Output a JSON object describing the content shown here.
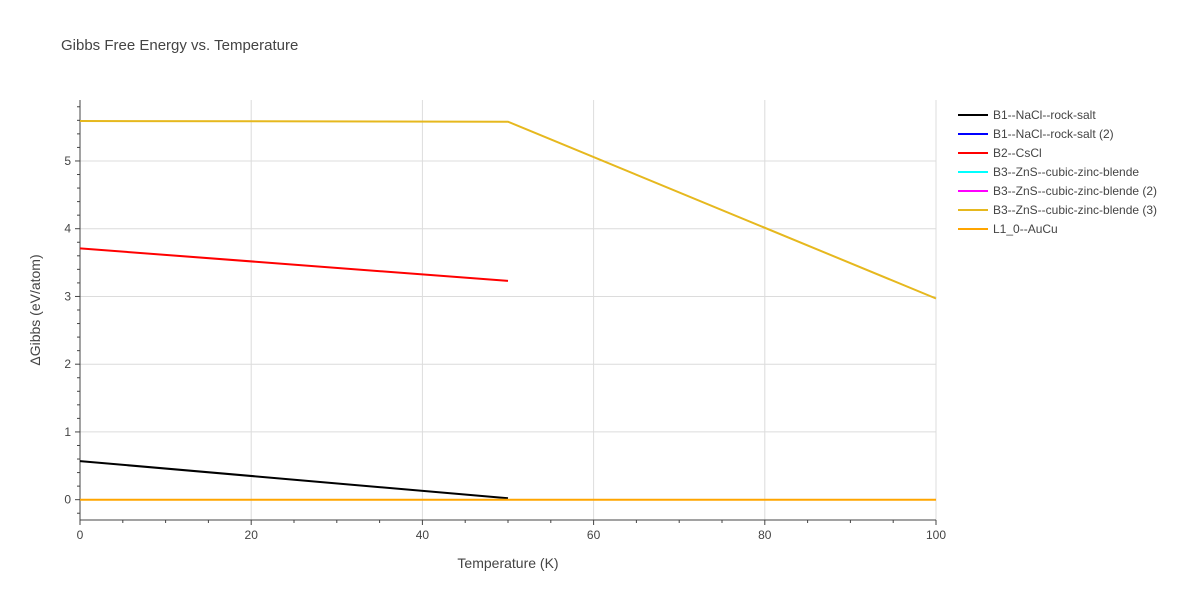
{
  "chart_data": {
    "type": "line",
    "title": "Gibbs Free Energy vs. Temperature",
    "xlabel": "Temperature (K)",
    "ylabel": "ΔGibbs (eV/atom)",
    "xlim": [
      0,
      100
    ],
    "ylim": [
      -0.3,
      5.9
    ],
    "xticks": [
      0,
      20,
      40,
      60,
      80,
      100
    ],
    "yticks": [
      0,
      1,
      2,
      3,
      4,
      5
    ],
    "grid": true,
    "legend_position": "right",
    "series": [
      {
        "name": "B1--NaCl--rock-salt",
        "color": "#000000",
        "x": [
          0,
          50
        ],
        "y": [
          0.57,
          0.02
        ]
      },
      {
        "name": "B1--NaCl--rock-salt (2)",
        "color": "#0000ff",
        "x": [],
        "y": []
      },
      {
        "name": "B2--CsCl",
        "color": "#ff0000",
        "x": [
          0,
          50
        ],
        "y": [
          3.71,
          3.23
        ]
      },
      {
        "name": "B3--ZnS--cubic-zinc-blende",
        "color": "#00ffff",
        "x": [],
        "y": []
      },
      {
        "name": "B3--ZnS--cubic-zinc-blende (2)",
        "color": "#ff00ff",
        "x": [],
        "y": []
      },
      {
        "name": "B3--ZnS--cubic-zinc-blende (3)",
        "color": "#e6b81e",
        "x": [
          0,
          50,
          100
        ],
        "y": [
          5.59,
          5.58,
          2.97
        ]
      },
      {
        "name": "L1_0--AuCu",
        "color": "#ffa500",
        "x": [
          0,
          100
        ],
        "y": [
          0,
          0
        ]
      }
    ]
  }
}
